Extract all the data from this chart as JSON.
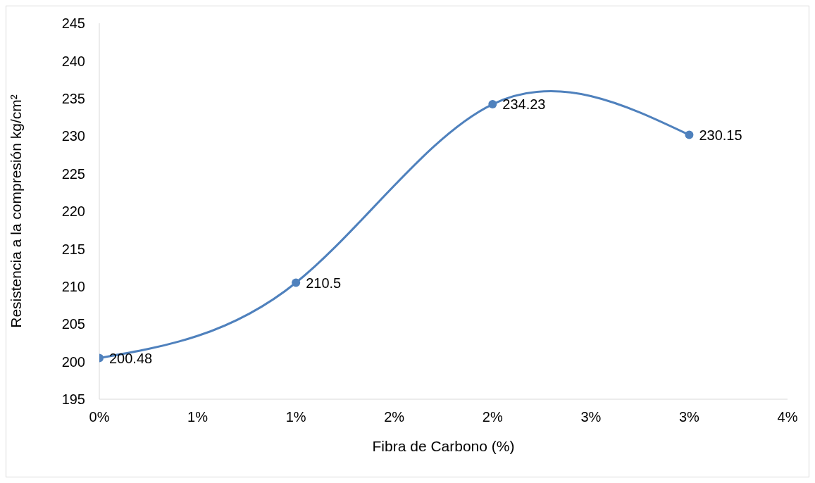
{
  "chart_data": {
    "type": "line",
    "xlabel": "Fibra de Carbono (%)",
    "ylabel": "Resistencia a la compresión kg/cm²",
    "x": [
      0,
      1,
      2,
      3
    ],
    "series": [
      {
        "color": "#4f81bd",
        "values": [
          200.48,
          210.5,
          234.23,
          230.15
        ]
      }
    ],
    "xlim": [
      0,
      3.5
    ],
    "xticks": [
      {
        "value": 0,
        "label": "0%"
      },
      {
        "value": 0.5,
        "label": "1%"
      },
      {
        "value": 1,
        "label": "1%"
      },
      {
        "value": 1.5,
        "label": "2%"
      },
      {
        "value": 2,
        "label": "2%"
      },
      {
        "value": 2.5,
        "label": "3%"
      },
      {
        "value": 3,
        "label": "3%"
      },
      {
        "value": 3.5,
        "label": "4%"
      }
    ],
    "ylim": [
      195,
      245
    ],
    "yticks": [
      195,
      200,
      205,
      210,
      215,
      220,
      225,
      230,
      235,
      240,
      245
    ],
    "grid": false,
    "legend": false,
    "marker": "circle",
    "line_style": "solid",
    "data_labels": true
  }
}
